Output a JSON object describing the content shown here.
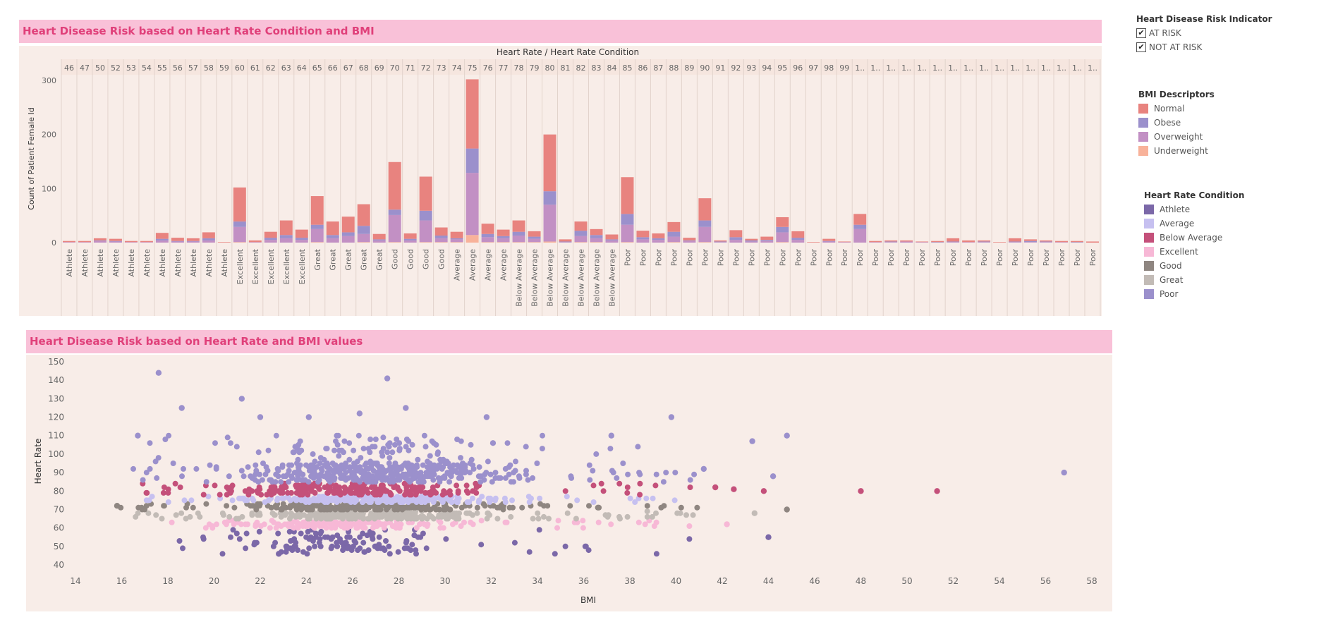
{
  "colors": {
    "Normal": "#e8837f",
    "Obese": "#9b90cc",
    "Overweight": "#c290c4",
    "Underweight": "#f8b29a",
    "Athlete": "#7b68a8",
    "Average": "#c6c0f0",
    "Below Average": "#c4507a",
    "Excellent": "#f7b8d6",
    "Good": "#8f8681",
    "Great": "#c2bbb6",
    "Poor": "#9b90cc"
  },
  "legends": {
    "risk": {
      "title": "Heart Disease Risk Indicator",
      "items": [
        {
          "label": "AT RISK",
          "checked": true
        },
        {
          "label": "NOT AT RISK",
          "checked": true
        }
      ]
    },
    "bmi": {
      "title": "BMI Descriptors",
      "items": [
        "Normal",
        "Obese",
        "Overweight",
        "Underweight"
      ]
    },
    "hrc": {
      "title": "Heart Rate Condition",
      "items": [
        "Athlete",
        "Average",
        "Below Average",
        "Excellent",
        "Good",
        "Great",
        "Poor"
      ]
    }
  },
  "chart_data": [
    {
      "type": "bar",
      "title": "Heart Disease Risk based on Heart Rate Condition and BMI",
      "header": "Heart Rate / Heart Rate Condition",
      "ylabel": "Count of Patient Female Id",
      "ylim": [
        -5,
        310
      ],
      "yticks": [
        0,
        100,
        200,
        300
      ],
      "categories": [
        "46",
        "47",
        "50",
        "52",
        "53",
        "54",
        "55",
        "56",
        "57",
        "58",
        "59",
        "60",
        "61",
        "62",
        "63",
        "64",
        "65",
        "66",
        "67",
        "68",
        "69",
        "70",
        "71",
        "72",
        "73",
        "74",
        "75",
        "76",
        "77",
        "78",
        "79",
        "80",
        "81",
        "82",
        "83",
        "84",
        "85",
        "86",
        "87",
        "88",
        "89",
        "90",
        "91",
        "92",
        "93",
        "94",
        "95",
        "96",
        "97",
        "98",
        "99",
        "1..",
        "1..",
        "1..",
        "1..",
        "1..",
        "1..",
        "1..",
        "1..",
        "1..",
        "1..",
        "1..",
        "1..",
        "1..",
        "1..",
        "1..",
        "1.."
      ],
      "conditions": [
        "Athlete",
        "Athlete",
        "Athlete",
        "Athlete",
        "Athlete",
        "Athlete",
        "Athlete",
        "Athlete",
        "Athlete",
        "Athlete",
        "Athlete",
        "Excellent",
        "Excellent",
        "Excellent",
        "Excellent",
        "Excellent",
        "Great",
        "Great",
        "Great",
        "Great",
        "Great",
        "Good",
        "Good",
        "Good",
        "Good",
        "Average",
        "Average",
        "Average",
        "Average",
        "Below Average",
        "Below Average",
        "Below Average",
        "Below Average",
        "Below Average",
        "Below Average",
        "Below Average",
        "Poor",
        "Poor",
        "Poor",
        "Poor",
        "Poor",
        "Poor",
        "Poor",
        "Poor",
        "Poor",
        "Poor",
        "Poor",
        "Poor",
        "Poor",
        "Poor",
        "Poor",
        "Poor",
        "Poor",
        "Poor",
        "Poor",
        "Poor",
        "Poor",
        "Poor",
        "Poor",
        "Poor",
        "Poor",
        "Poor",
        "Poor",
        "Poor",
        "Poor",
        "Poor",
        "Poor"
      ],
      "series": [
        {
          "name": "Underweight",
          "values": [
            0,
            0,
            0,
            0,
            0,
            0,
            0,
            0,
            0,
            0,
            0,
            1,
            0,
            0,
            0,
            0,
            1,
            0,
            0,
            1,
            0,
            1,
            0,
            1,
            1,
            1,
            14,
            1,
            1,
            1,
            1,
            2,
            0,
            1,
            1,
            0,
            1,
            0,
            0,
            1,
            0,
            1,
            0,
            0,
            0,
            0,
            1,
            0,
            0,
            0,
            0,
            0,
            0,
            0,
            0,
            0,
            0,
            0,
            0,
            0,
            0,
            0,
            0,
            0,
            0,
            0,
            0
          ]
        },
        {
          "name": "Overweight",
          "values": [
            1,
            1,
            3,
            2,
            1,
            1,
            4,
            2,
            2,
            4,
            0,
            28,
            1,
            5,
            8,
            5,
            24,
            8,
            12,
            15,
            4,
            50,
            4,
            40,
            7,
            5,
            115,
            9,
            7,
            12,
            6,
            68,
            1,
            11,
            7,
            4,
            32,
            6,
            5,
            10,
            3,
            28,
            1,
            5,
            2,
            3,
            18,
            5,
            0,
            2,
            1,
            25,
            1,
            1,
            2,
            1,
            0,
            1,
            1,
            1,
            0,
            1,
            1,
            1,
            1,
            0,
            0
          ]
        },
        {
          "name": "Obese",
          "values": [
            0,
            0,
            1,
            1,
            0,
            0,
            3,
            1,
            1,
            4,
            0,
            10,
            0,
            4,
            6,
            4,
            8,
            6,
            7,
            15,
            2,
            10,
            3,
            18,
            5,
            2,
            45,
            6,
            4,
            7,
            4,
            25,
            1,
            10,
            6,
            2,
            20,
            4,
            3,
            9,
            1,
            12,
            1,
            5,
            2,
            2,
            10,
            4,
            0,
            1,
            0,
            8,
            0,
            1,
            0,
            0,
            1,
            1,
            0,
            1,
            0,
            1,
            2,
            1,
            0,
            1,
            0
          ]
        },
        {
          "name": "Normal",
          "values": [
            2,
            2,
            4,
            4,
            2,
            2,
            11,
            6,
            5,
            11,
            1,
            63,
            3,
            11,
            27,
            15,
            53,
            25,
            29,
            40,
            10,
            88,
            10,
            63,
            15,
            12,
            128,
            19,
            12,
            21,
            10,
            105,
            4,
            17,
            11,
            9,
            68,
            12,
            9,
            18,
            5,
            41,
            2,
            13,
            3,
            6,
            18,
            12,
            1,
            4,
            1,
            20,
            2,
            2,
            2,
            1,
            2,
            6,
            3,
            2,
            1,
            6,
            3,
            2,
            2,
            2,
            2
          ]
        }
      ]
    },
    {
      "type": "scatter",
      "title": "Heart Disease Risk based on Heart Rate and BMI values",
      "xlabel": "BMI",
      "ylabel": "Heart Rate",
      "xlim": [
        13,
        59
      ],
      "ylim": [
        37,
        152
      ],
      "xticks": [
        14,
        16,
        18,
        20,
        22,
        24,
        26,
        28,
        30,
        32,
        34,
        36,
        38,
        40,
        42,
        44,
        46,
        48,
        50,
        52,
        54,
        56,
        58
      ],
      "yticks": [
        40,
        50,
        60,
        70,
        80,
        90,
        100,
        110,
        120,
        130,
        140,
        150
      ],
      "bands": [
        {
          "name": "Athlete",
          "y_min": 46,
          "y_max": 59,
          "x_min": 16.5,
          "x_max": 44,
          "core": [
            19,
            30
          ],
          "count": 130
        },
        {
          "name": "Excellent",
          "y_min": 60,
          "y_max": 64,
          "x_min": 18,
          "x_max": 42.2,
          "core": [
            19,
            31
          ],
          "count": 200
        },
        {
          "name": "Great",
          "y_min": 65,
          "y_max": 69,
          "x_min": 16.5,
          "x_max": 44.8,
          "core": [
            19,
            32
          ],
          "count": 260
        },
        {
          "name": "Good",
          "y_min": 70,
          "y_max": 73,
          "x_min": 15.8,
          "x_max": 44.8,
          "core": [
            19,
            32
          ],
          "count": 260
        },
        {
          "name": "Average",
          "y_min": 74,
          "y_max": 77,
          "x_min": 16.5,
          "x_max": 40.2,
          "core": [
            19,
            33
          ],
          "count": 230
        },
        {
          "name": "Below Average",
          "y_min": 78,
          "y_max": 84,
          "x_min": 16.7,
          "x_max": 51.3,
          "core": [
            19,
            31
          ],
          "count": 260
        },
        {
          "name": "Poor",
          "y_min": 85,
          "y_max": 110,
          "x_min": 16.5,
          "x_max": 56.8,
          "core": [
            19,
            33
          ],
          "count": 520
        }
      ],
      "outliers": [
        {
          "x": 17.6,
          "y": 144,
          "condition": "Poor"
        },
        {
          "x": 27.5,
          "y": 141,
          "condition": "Poor"
        },
        {
          "x": 21.2,
          "y": 130,
          "condition": "Poor"
        },
        {
          "x": 18.6,
          "y": 125,
          "condition": "Poor"
        },
        {
          "x": 28.3,
          "y": 125,
          "condition": "Poor"
        },
        {
          "x": 22.0,
          "y": 120,
          "condition": "Poor"
        },
        {
          "x": 24.1,
          "y": 120,
          "condition": "Poor"
        },
        {
          "x": 26.3,
          "y": 122,
          "condition": "Poor"
        },
        {
          "x": 31.8,
          "y": 120,
          "condition": "Poor"
        },
        {
          "x": 39.8,
          "y": 120,
          "condition": "Poor"
        },
        {
          "x": 16.7,
          "y": 110,
          "condition": "Poor"
        },
        {
          "x": 37.2,
          "y": 110,
          "condition": "Poor"
        },
        {
          "x": 43.3,
          "y": 107,
          "condition": "Poor"
        },
        {
          "x": 44.8,
          "y": 110,
          "condition": "Poor"
        },
        {
          "x": 56.8,
          "y": 90,
          "condition": "Poor"
        },
        {
          "x": 44.2,
          "y": 88,
          "condition": "Poor"
        },
        {
          "x": 41.2,
          "y": 92,
          "condition": "Poor"
        },
        {
          "x": 51.3,
          "y": 80,
          "condition": "Below Average"
        },
        {
          "x": 48.0,
          "y": 80,
          "condition": "Below Average"
        },
        {
          "x": 42.5,
          "y": 81,
          "condition": "Below Average"
        },
        {
          "x": 41.7,
          "y": 82,
          "condition": "Below Average"
        },
        {
          "x": 43.8,
          "y": 80,
          "condition": "Below Average"
        },
        {
          "x": 44.0,
          "y": 55,
          "condition": "Athlete"
        },
        {
          "x": 22.8,
          "y": 46,
          "condition": "Athlete"
        },
        {
          "x": 44.8,
          "y": 70,
          "condition": "Good"
        },
        {
          "x": 43.4,
          "y": 68,
          "condition": "Great"
        },
        {
          "x": 42.2,
          "y": 62,
          "condition": "Excellent"
        },
        {
          "x": 15.8,
          "y": 72,
          "condition": "Good"
        }
      ]
    }
  ]
}
